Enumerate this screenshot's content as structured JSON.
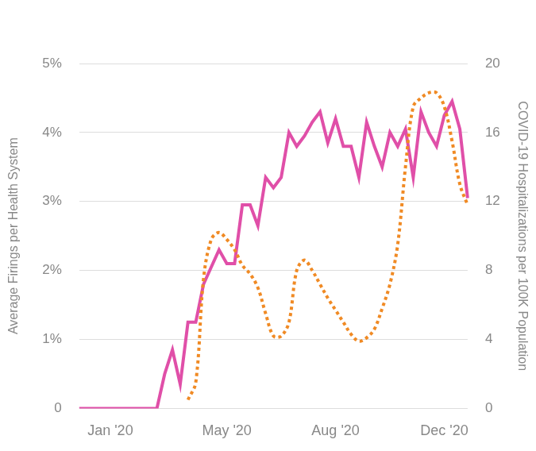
{
  "chart_data": {
    "type": "line",
    "y_label": "Average Firings per Health System",
    "y2_label": "COVID-19 Hospitalizations per 100K Population",
    "categories": [
      null,
      null,
      null,
      null,
      "Jan '20",
      null,
      null,
      null,
      null,
      null,
      null,
      null,
      null,
      null,
      null,
      null,
      null,
      null,
      null,
      "May '20",
      null,
      null,
      null,
      null,
      null,
      null,
      null,
      null,
      null,
      null,
      null,
      null,
      null,
      "Aug '20",
      null,
      null,
      null,
      null,
      null,
      null,
      null,
      null,
      null,
      null,
      null,
      null,
      null,
      "Dec '20",
      null,
      null,
      null
    ],
    "series": [
      {
        "color": "#e04fa8",
        "line_style": "solid",
        "axis": "y",
        "values": [
          0,
          0,
          0,
          0,
          0,
          0,
          0,
          0,
          0,
          0,
          0,
          0.5,
          0.85,
          0.35,
          1.25,
          1.25,
          1.8,
          2.05,
          2.3,
          2.1,
          2.1,
          2.95,
          2.95,
          2.65,
          3.35,
          3.2,
          3.35,
          4.0,
          3.8,
          3.95,
          4.15,
          4.3,
          3.85,
          4.2,
          3.8,
          3.8,
          3.35,
          4.15,
          3.8,
          3.5,
          4.0,
          3.8,
          4.05,
          3.35,
          4.3,
          4.0,
          3.8,
          4.25,
          4.45,
          4.05,
          3.05
        ]
      },
      {
        "color": "#f08a24",
        "line_style": "dotted",
        "axis": "y2",
        "values": [
          null,
          null,
          null,
          null,
          null,
          null,
          null,
          null,
          null,
          null,
          null,
          null,
          null,
          null,
          0.5,
          1.5,
          7.5,
          9.8,
          10.2,
          9.8,
          9.2,
          8.3,
          7.8,
          7.0,
          5.5,
          4.2,
          4.2,
          5.0,
          8.0,
          8.6,
          8.0,
          7.2,
          6.4,
          5.7,
          5.0,
          4.3,
          3.9,
          4.1,
          4.6,
          5.8,
          7.2,
          9.5,
          14,
          17.5,
          18,
          18.3,
          18.3,
          17.5,
          15.5,
          13,
          11.8
        ]
      }
    ],
    "ylim": [
      0,
      5
    ],
    "yticks": [
      0,
      {
        "value": 1,
        "label": "1%"
      },
      {
        "value": 2,
        "label": "2%"
      },
      {
        "value": 3,
        "label": "3%"
      },
      {
        "value": 4,
        "label": "4%"
      },
      {
        "value": 5,
        "label": "5%"
      }
    ],
    "y2lim": [
      0,
      20
    ],
    "y2ticks": [
      0,
      4,
      8,
      12,
      16,
      20
    ],
    "grid": true
  }
}
